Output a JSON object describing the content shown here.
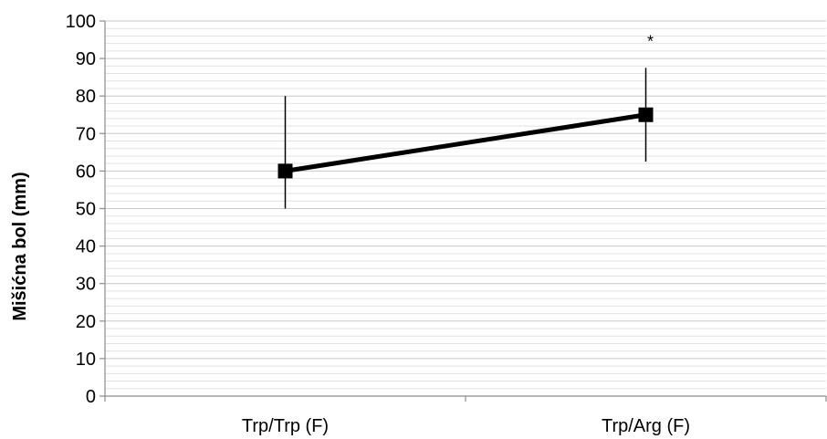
{
  "chart_data": {
    "type": "line",
    "categories": [
      "Trp/Trp (F)",
      "Trp/Arg (F)"
    ],
    "series": [
      {
        "values": [
          60,
          75
        ],
        "error_low": [
          50,
          62.5
        ],
        "error_high": [
          80,
          87.5
        ],
        "color": "#000000",
        "marker": "square"
      }
    ],
    "title": "",
    "xlabel": "",
    "ylabel": "Mišićna bol (mm)",
    "ylim": [
      0,
      100
    ],
    "yticks": [
      0,
      10,
      20,
      30,
      40,
      50,
      60,
      70,
      80,
      90,
      100
    ],
    "minor_grid_step": 2,
    "grid": true,
    "legend": "none",
    "annotations": [
      {
        "category": "Trp/Arg (F)",
        "y": 96,
        "text": "*"
      }
    ]
  }
}
